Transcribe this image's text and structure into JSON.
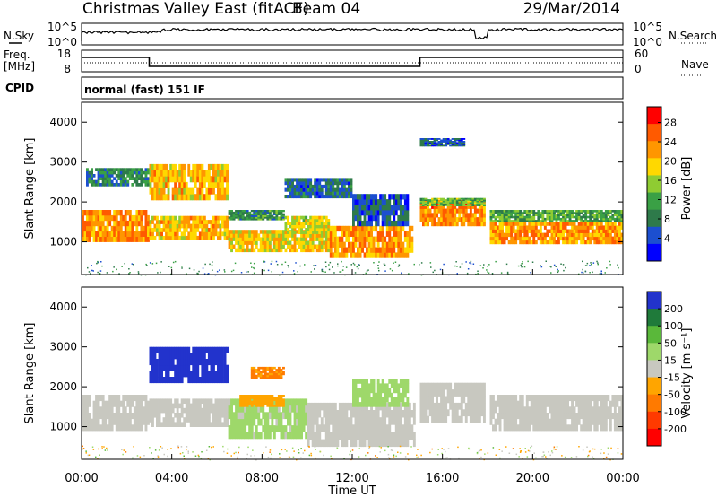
{
  "header": {
    "station": "Christmas Valley East (fitACF)",
    "beam": "Beam 04",
    "date": "29/Mar/2014"
  },
  "top_panels": {
    "nsky_label": "N.Sky",
    "nsearch_label": "N.Search",
    "noise_ticks_left": [
      "10^5",
      "10^0"
    ],
    "noise_ticks_right": [
      "10^5",
      "10^0"
    ],
    "freq_label": "Freq.",
    "freq_unit": "[MHz]",
    "freq_ticks": [
      "18",
      "8"
    ],
    "nave_label": "Nave",
    "nave_ticks": [
      "60",
      "0"
    ],
    "cpid_label": "CPID",
    "cpid_text": "normal (fast) 151 IF"
  },
  "colors": {
    "power": [
      "#0000ff",
      "#1c4fd0",
      "#2e7a4a",
      "#3aa045",
      "#8fcc32",
      "#ffd800",
      "#ff9600",
      "#ff5a00",
      "#ff0000"
    ],
    "velocity": [
      "#2233cc",
      "#1f7a3a",
      "#5ab83a",
      "#9ed86a",
      "#c8c8c0",
      "#ffa500",
      "#ff7a00",
      "#ff3a00",
      "#ff0000"
    ]
  },
  "chart_data": [
    {
      "type": "heatmap",
      "name": "power",
      "ylabel": "Slant Range [km]",
      "xlim": [
        0,
        24
      ],
      "ylim": [
        180,
        4500
      ],
      "yticks": [
        "1000",
        "2000",
        "3000",
        "4000"
      ],
      "colorbar": {
        "label": "Power [dB]",
        "ticks": [
          "28",
          "24",
          "20",
          "16",
          "12",
          "8",
          "4"
        ],
        "range": [
          0,
          30
        ]
      },
      "bands": [
        {
          "start": 0.0,
          "end": 3.0,
          "lo": 1000,
          "hi": 1800,
          "value": 22
        },
        {
          "start": 3.0,
          "end": 6.5,
          "lo": 1050,
          "hi": 1650,
          "value": 20
        },
        {
          "start": 0.2,
          "end": 3.0,
          "lo": 2400,
          "hi": 2850,
          "value": 9
        },
        {
          "start": 3.0,
          "end": 6.5,
          "lo": 2050,
          "hi": 2950,
          "value": 20
        },
        {
          "start": 6.5,
          "end": 9.0,
          "lo": 1550,
          "hi": 1800,
          "value": 10
        },
        {
          "start": 6.5,
          "end": 11.0,
          "lo": 750,
          "hi": 1300,
          "value": 19
        },
        {
          "start": 9.0,
          "end": 11.0,
          "lo": 1200,
          "hi": 1650,
          "value": 17
        },
        {
          "start": 11.0,
          "end": 14.7,
          "lo": 600,
          "hi": 1400,
          "value": 21
        },
        {
          "start": 9.0,
          "end": 12.0,
          "lo": 2100,
          "hi": 2600,
          "value": 7
        },
        {
          "start": 12.0,
          "end": 14.5,
          "lo": 1400,
          "hi": 2200,
          "value": 6
        },
        {
          "start": 15.0,
          "end": 17.9,
          "lo": 1400,
          "hi": 2050,
          "value": 23
        },
        {
          "start": 15.0,
          "end": 17.9,
          "lo": 1900,
          "hi": 2100,
          "value": 13
        },
        {
          "start": 15.0,
          "end": 17.0,
          "lo": 3400,
          "hi": 3600,
          "value": 6
        },
        {
          "start": 18.1,
          "end": 24.0,
          "lo": 950,
          "hi": 1500,
          "value": 22
        },
        {
          "start": 18.1,
          "end": 24.0,
          "lo": 1500,
          "hi": 1800,
          "value": 12
        }
      ]
    },
    {
      "type": "heatmap",
      "name": "velocity",
      "ylabel": "Slant Range [km]",
      "xlabel": "Time UT",
      "xlim": [
        0,
        24
      ],
      "ylim": [
        180,
        4500
      ],
      "xticks": [
        "00:00",
        "04:00",
        "08:00",
        "12:00",
        "16:00",
        "20:00",
        "00:00"
      ],
      "yticks": [
        "1000",
        "2000",
        "3000",
        "4000"
      ],
      "colorbar": {
        "label": "Velocity [m s⁻¹]",
        "ticks": [
          "200",
          "100",
          "50",
          "15",
          "-15",
          "-50",
          "-100",
          "-200"
        ],
        "range": [
          -250,
          250
        ]
      },
      "bands": [
        {
          "start": 0.0,
          "end": 3.0,
          "lo": 900,
          "hi": 1800,
          "value": 0
        },
        {
          "start": 3.0,
          "end": 6.5,
          "lo": 1000,
          "hi": 1700,
          "value": 0
        },
        {
          "start": 3.0,
          "end": 6.5,
          "lo": 2100,
          "hi": 3000,
          "value": 220
        },
        {
          "start": 6.5,
          "end": 10.0,
          "lo": 700,
          "hi": 1700,
          "value": 40
        },
        {
          "start": 7.0,
          "end": 9.0,
          "lo": 1500,
          "hi": 1800,
          "value": -60
        },
        {
          "start": 7.5,
          "end": 9.0,
          "lo": 2200,
          "hi": 2500,
          "value": -90
        },
        {
          "start": 10.0,
          "end": 14.8,
          "lo": 500,
          "hi": 1600,
          "value": 0
        },
        {
          "start": 12.0,
          "end": 14.5,
          "lo": 1500,
          "hi": 2200,
          "value": 60
        },
        {
          "start": 15.0,
          "end": 17.9,
          "lo": 1100,
          "hi": 2100,
          "value": 0
        },
        {
          "start": 18.1,
          "end": 24.0,
          "lo": 900,
          "hi": 1800,
          "value": 0
        }
      ]
    }
  ]
}
